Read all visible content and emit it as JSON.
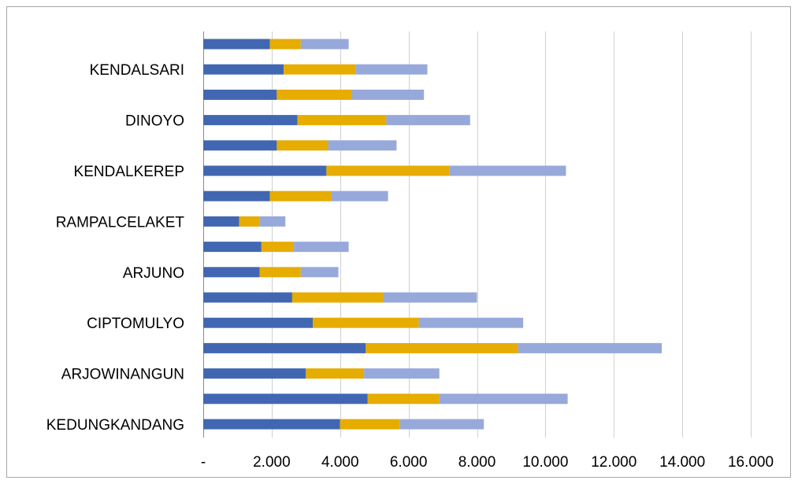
{
  "chart_data": {
    "type": "bar",
    "orientation": "horizontal",
    "stacked": true,
    "categories": [
      "KEDUNGKANDANG",
      "",
      "ARJOWINANGUN",
      "",
      "CIPTOMULYO",
      "",
      "ARJUNO",
      "",
      "RAMPALCELAKET",
      "",
      "KENDALKEREP",
      "",
      "DINOYO",
      "",
      "KENDALSARI",
      ""
    ],
    "series": [
      {
        "color": "#4267b2",
        "values": [
          4000,
          4800,
          3000,
          4750,
          3200,
          2600,
          1650,
          1700,
          1050,
          1950,
          3600,
          2150,
          2750,
          2150,
          2350,
          1950
        ]
      },
      {
        "color": "#e6ac00",
        "values": [
          1750,
          2100,
          1700,
          4450,
          3100,
          2650,
          1200,
          950,
          600,
          1800,
          3600,
          1500,
          2600,
          2200,
          2100,
          900
        ]
      },
      {
        "color": "#97a9da",
        "values": [
          2450,
          3750,
          2200,
          4200,
          3050,
          2750,
          1100,
          1600,
          750,
          1650,
          3400,
          2000,
          2450,
          2100,
          2100,
          1400
        ]
      }
    ],
    "x_ticks": [
      "-",
      "2.000",
      "4.000",
      "6.000",
      "8.000",
      "10.000",
      "12.000",
      "14.000",
      "16.000"
    ],
    "xlim": [
      0,
      16000
    ],
    "gridlines": true,
    "legend": false
  }
}
